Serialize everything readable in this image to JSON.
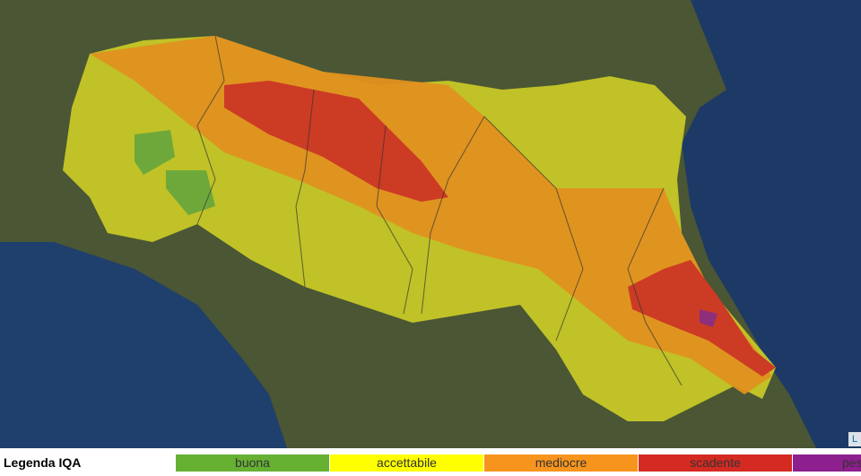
{
  "attribution": "L",
  "legend": {
    "title": "Legenda IQA",
    "items": [
      {
        "label": "buona",
        "color": "#66b032"
      },
      {
        "label": "accettabile",
        "color": "#ffff00"
      },
      {
        "label": "mediocre",
        "color": "#f7941d"
      },
      {
        "label": "scadente",
        "color": "#d42a22"
      },
      {
        "label": "pes",
        "color": "#8e1f8e"
      }
    ]
  }
}
